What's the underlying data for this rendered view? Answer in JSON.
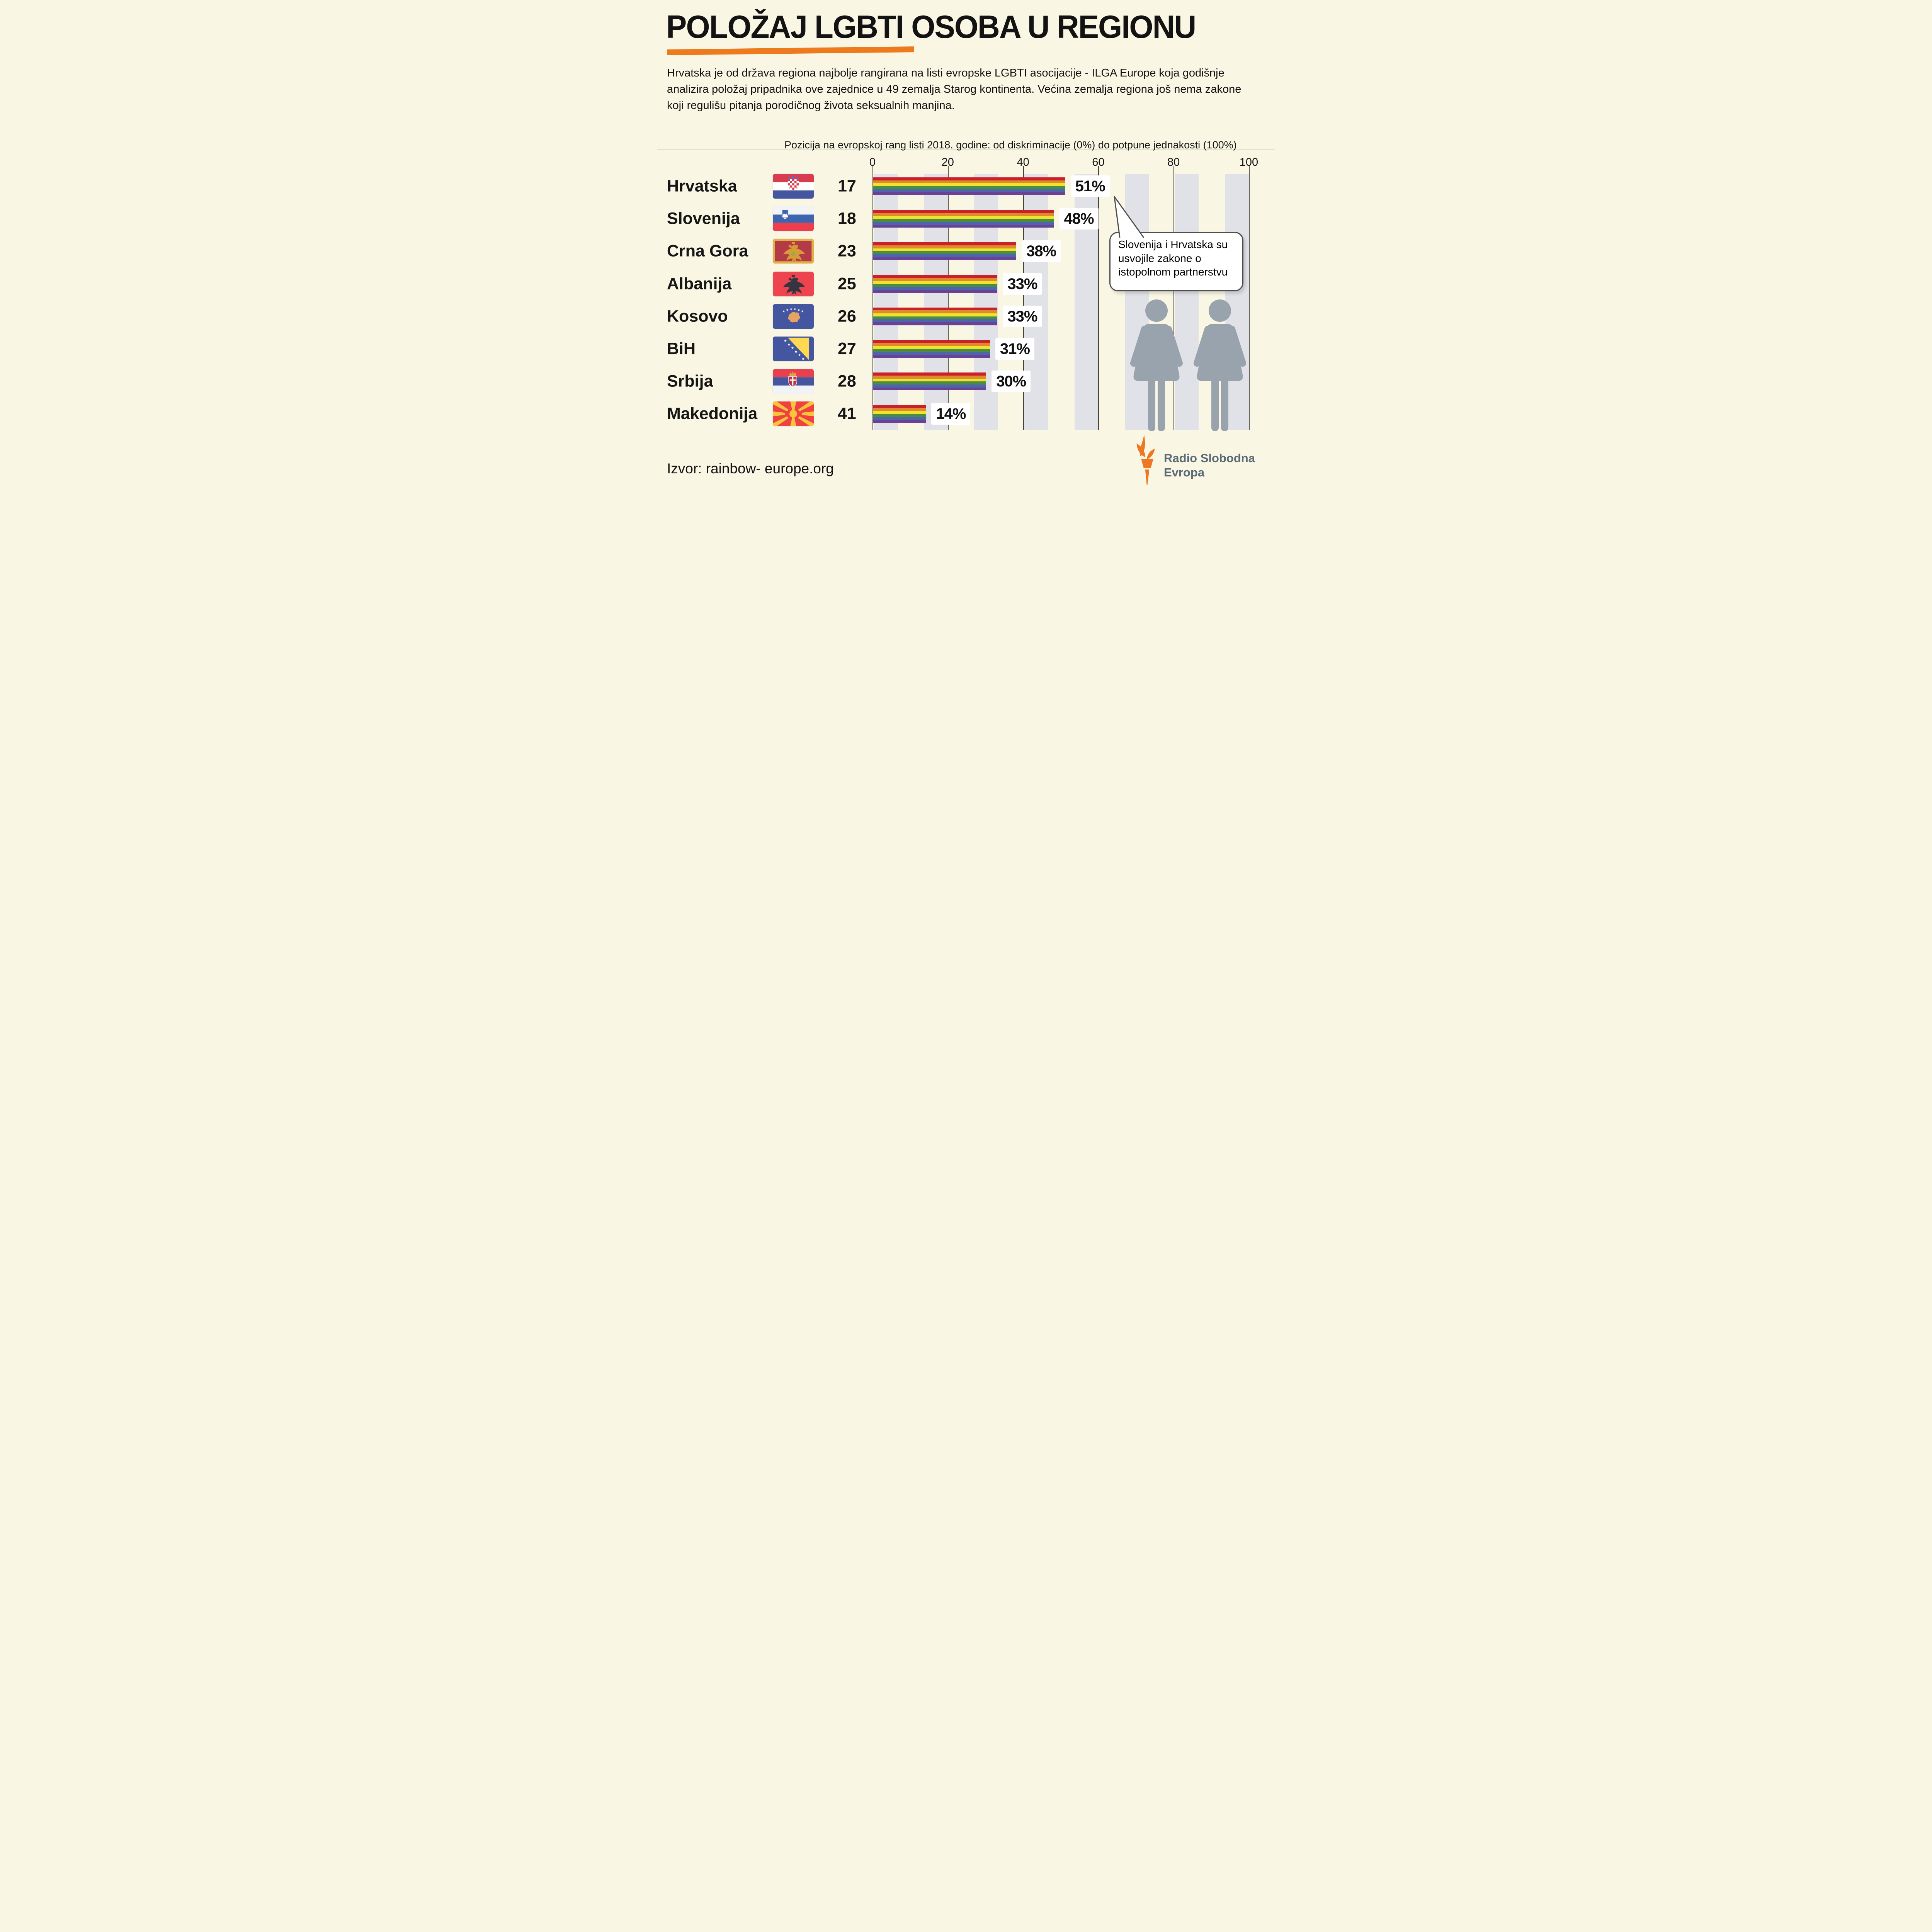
{
  "header": {
    "title": "POLOŽAJ LGBTI OSOBA U REGIONU",
    "intro": "Hrvatska je od država regiona najbolje rangirana na listi evropske LGBTI asocijacije - ILGA Europe koja godišnje analizira položaj pripadnika ove zajednice u 49 zemalja Starog kontinenta. Većina zemalja regiona još nema zakone koji regulišu pitanja porodičnog života seksualnih manjina."
  },
  "chart": {
    "subtitle": "Pozicija na evropskoj rang listi 2018. godine: od diskriminacije (0%) do potpune jednakosti (100%)",
    "axis_ticks": [
      "0",
      "20",
      "40",
      "60",
      "80",
      "100"
    ],
    "rows": [
      {
        "country": "Hrvatska",
        "rank": "17",
        "value": 51,
        "value_label": "51%",
        "flag": "croatia"
      },
      {
        "country": "Slovenija",
        "rank": "18",
        "value": 48,
        "value_label": "48%",
        "flag": "slovenia"
      },
      {
        "country": "Crna Gora",
        "rank": "23",
        "value": 38,
        "value_label": "38%",
        "flag": "montenegro"
      },
      {
        "country": "Albanija",
        "rank": "25",
        "value": 33,
        "value_label": "33%",
        "flag": "albania"
      },
      {
        "country": "Kosovo",
        "rank": "26",
        "value": 33,
        "value_label": "33%",
        "flag": "kosovo"
      },
      {
        "country": "BiH",
        "rank": "27",
        "value": 31,
        "value_label": "31%",
        "flag": "bih"
      },
      {
        "country": "Srbija",
        "rank": "28",
        "value": 30,
        "value_label": "30%",
        "flag": "serbia"
      },
      {
        "country": "Makedonija",
        "rank": "41",
        "value": 14,
        "value_label": "14%",
        "flag": "macedonia"
      }
    ]
  },
  "callout": {
    "text": "Slovenija i Hrvatska su usvojile zakone o istopolnom partnerstvu"
  },
  "source": {
    "text": "Izvor: rainbow- europe.org"
  },
  "logo": {
    "line1": "Radio Slobodna",
    "line2": "Evropa"
  },
  "colors": {
    "background": "#f9f7e3",
    "accent_orange": "#ed7a1c",
    "band_grey": "#e1e2e8",
    "gridline": "#45453e",
    "bar_stripes": [
      "#c9202a",
      "#dd8b2c",
      "#f1e32b",
      "#4b8c45",
      "#4d66ab",
      "#6b4195"
    ],
    "figure_grey": "#99a3ad",
    "bubble_border": "#4f4f4f",
    "logo_text": "#5a6a77"
  },
  "chart_data": {
    "type": "bar",
    "orientation": "horizontal",
    "title": "Pozicija na evropskoj rang listi 2018. godine: od diskriminacije (0%) do potpune jednakosti (100%)",
    "categories": [
      "Hrvatska",
      "Slovenija",
      "Crna Gora",
      "Albanija",
      "Kosovo",
      "BiH",
      "Srbija",
      "Makedonija"
    ],
    "values": [
      51,
      48,
      38,
      33,
      33,
      31,
      30,
      14
    ],
    "value_labels": [
      "51%",
      "48%",
      "38%",
      "33%",
      "33%",
      "31%",
      "30%",
      "14%"
    ],
    "european_ranks": [
      17,
      18,
      23,
      25,
      26,
      27,
      28,
      41
    ],
    "xlim": [
      0,
      100
    ],
    "x_ticks": [
      0,
      20,
      40,
      60,
      80,
      100
    ],
    "grid": "vertical lines every 20, decorative grey column bands",
    "legend": "none",
    "bar_style": "rainbow-6-stripes",
    "annotation": "Slovenija i Hrvatska su usvojile zakone o istopolnom partnerstvu"
  }
}
